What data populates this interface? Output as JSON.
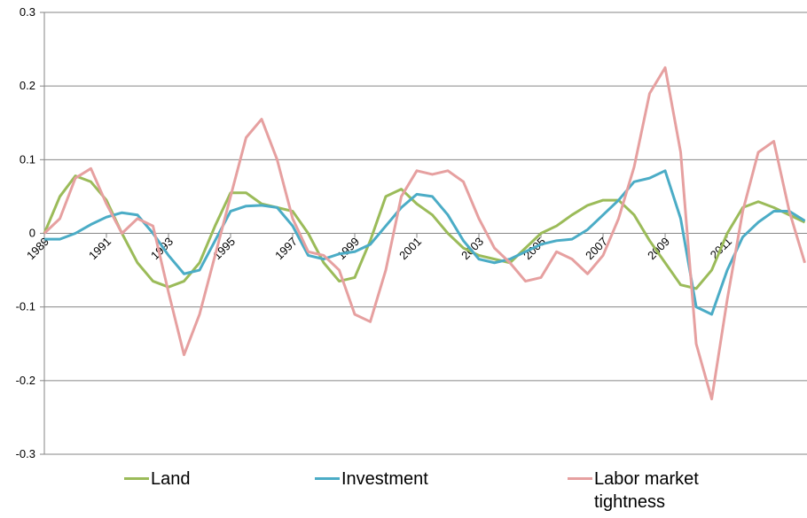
{
  "chart_data": {
    "type": "line",
    "x": [
      1989,
      1989.5,
      1990,
      1990.5,
      1991,
      1991.5,
      1992,
      1992.5,
      1993,
      1993.5,
      1994,
      1994.5,
      1995,
      1995.5,
      1996,
      1996.5,
      1997,
      1997.5,
      1998,
      1998.5,
      1999,
      1999.5,
      2000,
      2000.5,
      2001,
      2001.5,
      2002,
      2002.5,
      2003,
      2003.5,
      2004,
      2004.5,
      2005,
      2005.5,
      2006,
      2006.5,
      2007,
      2007.5,
      2008,
      2008.5,
      2009,
      2009.5,
      2010,
      2010.5,
      2011,
      2011.5,
      2012,
      2012.5,
      2013,
      2013.5
    ],
    "series": [
      {
        "name": "Land",
        "color": "#9bbb59",
        "values": [
          0.0,
          0.05,
          0.078,
          0.07,
          0.045,
          0.0,
          -0.04,
          -0.065,
          -0.073,
          -0.065,
          -0.04,
          0.01,
          0.055,
          0.055,
          0.04,
          0.035,
          0.03,
          0.0,
          -0.04,
          -0.065,
          -0.06,
          -0.01,
          0.05,
          0.06,
          0.04,
          0.025,
          0.0,
          -0.02,
          -0.03,
          -0.035,
          -0.04,
          -0.02,
          0.0,
          0.01,
          0.025,
          0.038,
          0.045,
          0.045,
          0.025,
          -0.01,
          -0.04,
          -0.07,
          -0.075,
          -0.05,
          0.0,
          0.035,
          0.043,
          0.035,
          0.025,
          0.015
        ]
      },
      {
        "name": "Investment",
        "color": "#4bacc6",
        "values": [
          -0.008,
          -0.008,
          0.0,
          0.012,
          0.022,
          0.028,
          0.025,
          0.0,
          -0.03,
          -0.055,
          -0.05,
          -0.01,
          0.03,
          0.037,
          0.038,
          0.035,
          0.01,
          -0.03,
          -0.035,
          -0.028,
          -0.025,
          -0.015,
          0.01,
          0.035,
          0.053,
          0.05,
          0.025,
          -0.01,
          -0.035,
          -0.04,
          -0.035,
          -0.025,
          -0.015,
          -0.01,
          -0.008,
          0.005,
          0.025,
          0.045,
          0.07,
          0.075,
          0.085,
          0.02,
          -0.1,
          -0.11,
          -0.05,
          -0.005,
          0.015,
          0.03,
          0.03,
          0.017
        ]
      },
      {
        "name": "Labor market tightness",
        "color": "#e6a0a0",
        "values": [
          0.0,
          0.02,
          0.075,
          0.088,
          0.04,
          0.0,
          0.02,
          0.01,
          -0.08,
          -0.165,
          -0.11,
          -0.03,
          0.05,
          0.13,
          0.155,
          0.1,
          0.02,
          -0.025,
          -0.03,
          -0.05,
          -0.11,
          -0.12,
          -0.05,
          0.05,
          0.085,
          0.08,
          0.085,
          0.07,
          0.02,
          -0.02,
          -0.04,
          -0.065,
          -0.06,
          -0.025,
          -0.035,
          -0.055,
          -0.03,
          0.02,
          0.09,
          0.19,
          0.225,
          0.11,
          -0.15,
          -0.225,
          -0.09,
          0.03,
          0.11,
          0.125,
          0.03,
          -0.04
        ]
      }
    ],
    "xlim": [
      1989,
      2013.57
    ],
    "xticks": [
      1989,
      1991,
      1993,
      1995,
      1997,
      1999,
      2001,
      2003,
      2005,
      2007,
      2009,
      2011
    ],
    "ylim": [
      -0.3,
      0.3
    ],
    "yticks": [
      -0.3,
      -0.2,
      -0.1,
      0,
      0.1,
      0.2,
      0.3
    ],
    "grid": true
  }
}
